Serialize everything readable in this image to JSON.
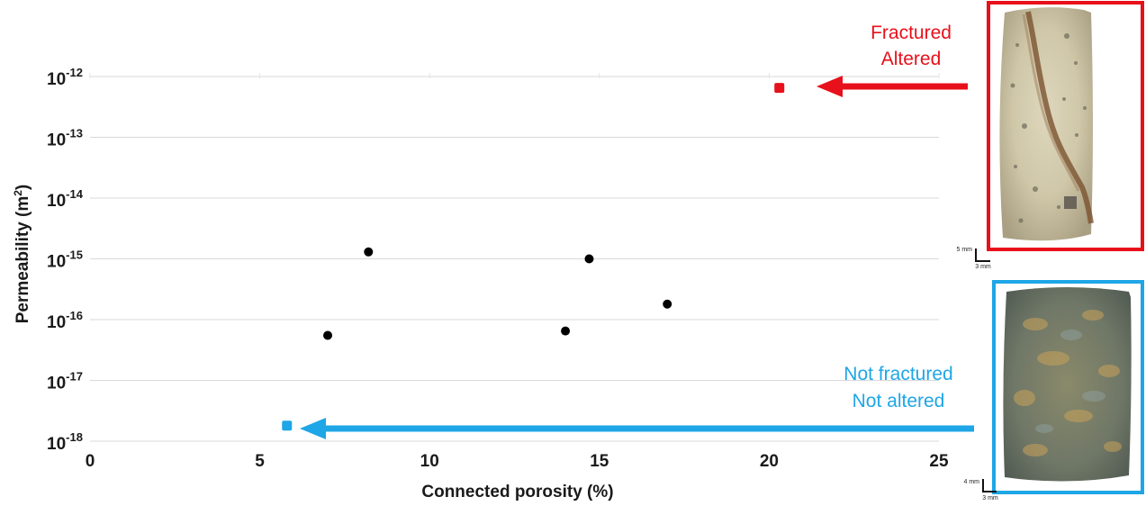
{
  "chart_data": {
    "type": "scatter",
    "title": "",
    "xlabel": "Connected porosity (%)",
    "ylabel_parts": {
      "base": "Permeability (m",
      "sup": "2",
      "end": ")"
    },
    "xlim": [
      0,
      25
    ],
    "ylim_log10": [
      -18,
      -12
    ],
    "y_scale": "log",
    "grid": "horizontal",
    "x_ticks": [
      {
        "label": "0",
        "value": 0
      },
      {
        "label": "5",
        "value": 5
      },
      {
        "label": "10",
        "value": 10
      },
      {
        "label": "15",
        "value": 15
      },
      {
        "label": "20",
        "value": 20
      },
      {
        "label": "25",
        "value": 25
      }
    ],
    "y_ticks": [
      {
        "base": "10",
        "exp": "-12",
        "value": -12
      },
      {
        "base": "10",
        "exp": "-13",
        "value": -13
      },
      {
        "base": "10",
        "exp": "-14",
        "value": -14
      },
      {
        "base": "10",
        "exp": "-15",
        "value": -15
      },
      {
        "base": "10",
        "exp": "-16",
        "value": -16
      },
      {
        "base": "10",
        "exp": "-17",
        "value": -17
      },
      {
        "base": "10",
        "exp": "-18",
        "value": -18
      }
    ],
    "series": [
      {
        "color": "#000000",
        "marker": "circle",
        "points": [
          {
            "x": 7.0,
            "y": 5.5e-17
          },
          {
            "x": 8.2,
            "y": 1.3e-15
          },
          {
            "x": 14.0,
            "y": 6.5e-17
          },
          {
            "x": 14.7,
            "y": 1e-15
          },
          {
            "x": 17.0,
            "y": 1.8e-16
          }
        ]
      },
      {
        "color": "#e8101a",
        "marker": "square",
        "points": [
          {
            "x": 20.3,
            "y": 6.5e-13
          }
        ]
      },
      {
        "color": "#1ea6e6",
        "marker": "square",
        "points": [
          {
            "x": 5.8,
            "y": 1.8e-18
          }
        ]
      }
    ],
    "annotations": [
      {
        "lines": [
          "Fractured",
          "Altered"
        ],
        "color": "#e8101a",
        "points_to": {
          "x": 20.3,
          "y": 6.5e-13
        }
      },
      {
        "lines": [
          "Not fractured",
          "Not altered"
        ],
        "color": "#1ea6e6",
        "points_to": {
          "x": 5.8,
          "y": 1.8e-18
        }
      }
    ]
  },
  "samples": {
    "fractured": {
      "border_color": "#e8101a",
      "scale_v": "5 mm",
      "scale_h": "3 mm"
    },
    "not_fractured": {
      "border_color": "#1ea6e6",
      "scale_v": "4 mm",
      "scale_h": "3 mm"
    }
  }
}
